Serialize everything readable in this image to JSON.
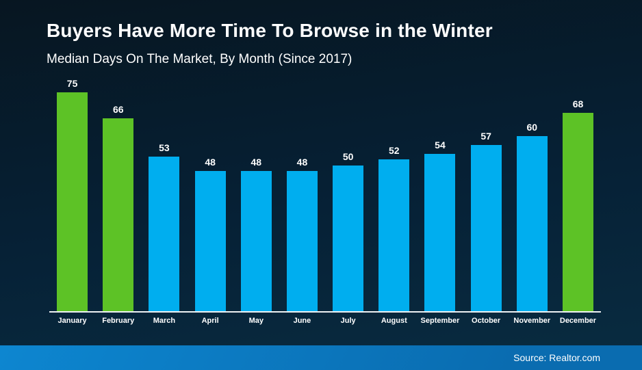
{
  "header": {
    "title": "Buyers Have More Time To Browse in the Winter",
    "subtitle": "Median Days On The Market, By Month (Since 2017)"
  },
  "footer": {
    "source": "Source: Realtor.com"
  },
  "colors": {
    "highlight_bar": "#5dc226",
    "default_bar": "#00aeef",
    "background_top": "#071621",
    "background_bottom": "#092c41",
    "footer_start": "#0d86d0",
    "footer_end": "#0a6cb0",
    "text": "#ffffff",
    "baseline": "#eef1f3"
  },
  "chart_data": {
    "type": "bar",
    "title": "Buyers Have More Time To Browse in the Winter",
    "subtitle": "Median Days On The Market, By Month (Since 2017)",
    "categories": [
      "January",
      "February",
      "March",
      "April",
      "May",
      "June",
      "July",
      "August",
      "September",
      "October",
      "November",
      "December"
    ],
    "values": [
      75,
      66,
      53,
      48,
      48,
      48,
      50,
      52,
      54,
      57,
      60,
      68
    ],
    "data_labels": [
      75,
      66,
      53,
      48,
      48,
      48,
      50,
      52,
      54,
      57,
      60,
      68
    ],
    "bar_colors": [
      "#5dc226",
      "#5dc226",
      "#00aeef",
      "#00aeef",
      "#00aeef",
      "#00aeef",
      "#00aeef",
      "#00aeef",
      "#00aeef",
      "#00aeef",
      "#00aeef",
      "#5dc226"
    ],
    "highlighted_categories": [
      "January",
      "February",
      "December"
    ],
    "xlabel": "",
    "ylabel": "",
    "ylim": [
      0,
      80
    ],
    "grid": false,
    "legend": false,
    "axis_line": "bottom-only",
    "source": "Source: Realtor.com"
  }
}
